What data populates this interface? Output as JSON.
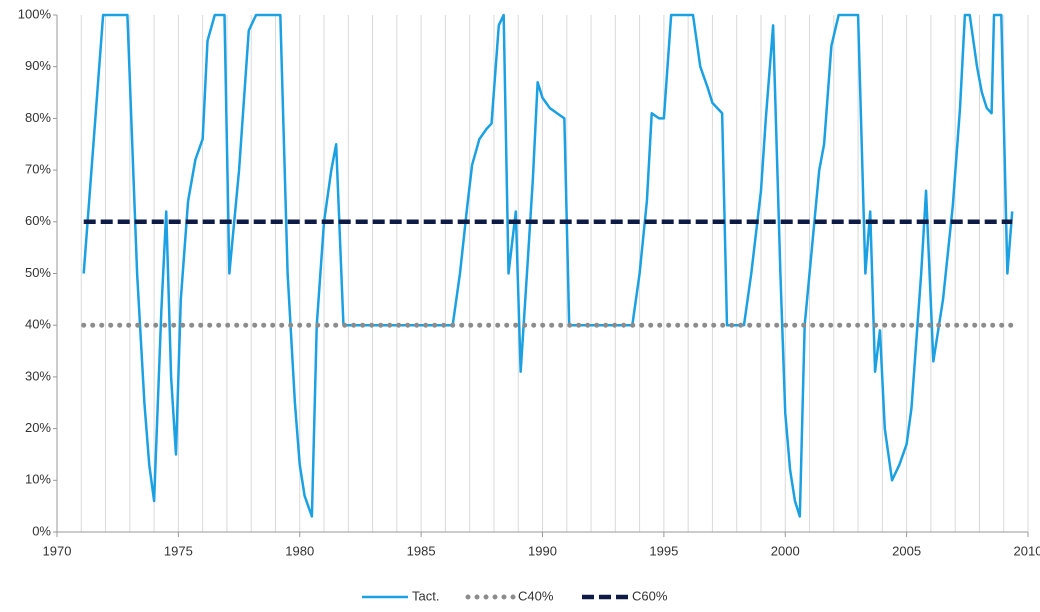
{
  "chart_data": {
    "type": "line",
    "xlim": [
      1970,
      2010
    ],
    "xticks": [
      1970,
      1975,
      1980,
      1985,
      1990,
      1995,
      2000,
      2005,
      2010
    ],
    "x_minor_ticks": [
      1971,
      1972,
      1973,
      1974,
      1976,
      1977,
      1978,
      1979,
      1981,
      1982,
      1983,
      1984,
      1986,
      1987,
      1988,
      1989,
      1991,
      1992,
      1993,
      1994,
      1996,
      1997,
      1998,
      1999,
      2001,
      2002,
      2003,
      2004,
      2006,
      2007,
      2008,
      2009
    ],
    "ylim": [
      0,
      100
    ],
    "yticks": [
      {
        "value": 0,
        "label": "0%"
      },
      {
        "value": 10,
        "label": "10%"
      },
      {
        "value": 20,
        "label": "20%"
      },
      {
        "value": 30,
        "label": "30%"
      },
      {
        "value": 40,
        "label": "40%"
      },
      {
        "value": 50,
        "label": "50%"
      },
      {
        "value": 60,
        "label": "60%"
      },
      {
        "value": 70,
        "label": "70%"
      },
      {
        "value": 80,
        "label": "80%"
      },
      {
        "value": 90,
        "label": "90%"
      },
      {
        "value": 100,
        "label": "100%"
      }
    ],
    "grid": "x",
    "legend": "bottom",
    "series": [
      {
        "name": "Tact.",
        "color": "#1ba1e2",
        "style": "solid",
        "x": [
          1971.1,
          1971.5,
          1971.9,
          1972.9,
          1973.3,
          1973.6,
          1973.8,
          1974.0,
          1974.3,
          1974.5,
          1974.7,
          1974.9,
          1975.1,
          1975.4,
          1975.7,
          1976.0,
          1976.2,
          1976.5,
          1976.9,
          1977.1,
          1977.5,
          1977.9,
          1978.2,
          1979.2,
          1979.5,
          1979.8,
          1980.0,
          1980.2,
          1980.5,
          1980.7,
          1981.0,
          1981.3,
          1981.5,
          1981.8,
          1986.3,
          1986.6,
          1986.9,
          1987.1,
          1987.4,
          1987.7,
          1987.9,
          1988.2,
          1988.4,
          1988.6,
          1988.9,
          1989.1,
          1989.4,
          1989.6,
          1989.8,
          1990.0,
          1990.3,
          1990.6,
          1990.9,
          1991.1,
          1993.7,
          1994.0,
          1994.3,
          1994.5,
          1994.8,
          1995.0,
          1995.3,
          1996.2,
          1996.5,
          1996.8,
          1997.0,
          1997.4,
          1997.6,
          1998.3,
          1998.6,
          1999.0,
          1999.2,
          1999.5,
          1999.8,
          2000.0,
          2000.2,
          2000.4,
          2000.6,
          2000.8,
          2001.1,
          2001.4,
          2001.6,
          2001.9,
          2002.2,
          2003.0,
          2003.3,
          2003.5,
          2003.7,
          2003.9,
          2004.1,
          2004.4,
          2004.7,
          2005.0,
          2005.2,
          2005.6,
          2005.8,
          2006.1,
          2006.5,
          2006.9,
          2007.2,
          2007.4,
          2007.6,
          2007.9,
          2008.1,
          2008.3,
          2008.5,
          2008.6,
          2008.9,
          2009.15,
          2009.35
        ],
        "values": [
          50,
          75,
          100,
          100,
          50,
          25,
          13,
          6,
          43,
          62,
          30,
          15,
          45,
          64,
          72,
          76,
          95,
          100,
          100,
          50,
          70,
          97,
          100,
          100,
          50,
          25,
          13,
          7,
          3,
          40,
          60,
          70,
          75,
          40,
          40,
          50,
          63,
          71,
          76,
          78,
          79,
          98,
          100,
          50,
          62,
          31,
          53,
          68,
          87,
          84,
          82,
          81,
          80,
          40,
          40,
          50,
          64,
          81,
          80,
          80,
          100,
          100,
          90,
          86,
          83,
          81,
          40,
          40,
          50,
          66,
          80,
          98,
          50,
          23,
          12,
          6,
          3,
          40,
          55,
          70,
          75,
          94,
          100,
          100,
          50,
          62,
          31,
          39,
          20,
          10,
          13,
          17,
          24,
          50,
          66,
          33,
          45,
          63,
          82,
          100,
          100,
          90,
          85,
          82,
          81,
          100,
          100,
          50,
          62
        ]
      },
      {
        "name": "C40%",
        "color": "#8c8c8c",
        "style": "dotted",
        "x": [
          1971.1,
          2009.35
        ],
        "values": [
          40,
          40
        ]
      },
      {
        "name": "C60%",
        "color": "#0d1b45",
        "style": "dashed",
        "x": [
          1971.1,
          2009.35
        ],
        "values": [
          60,
          60
        ]
      }
    ]
  }
}
